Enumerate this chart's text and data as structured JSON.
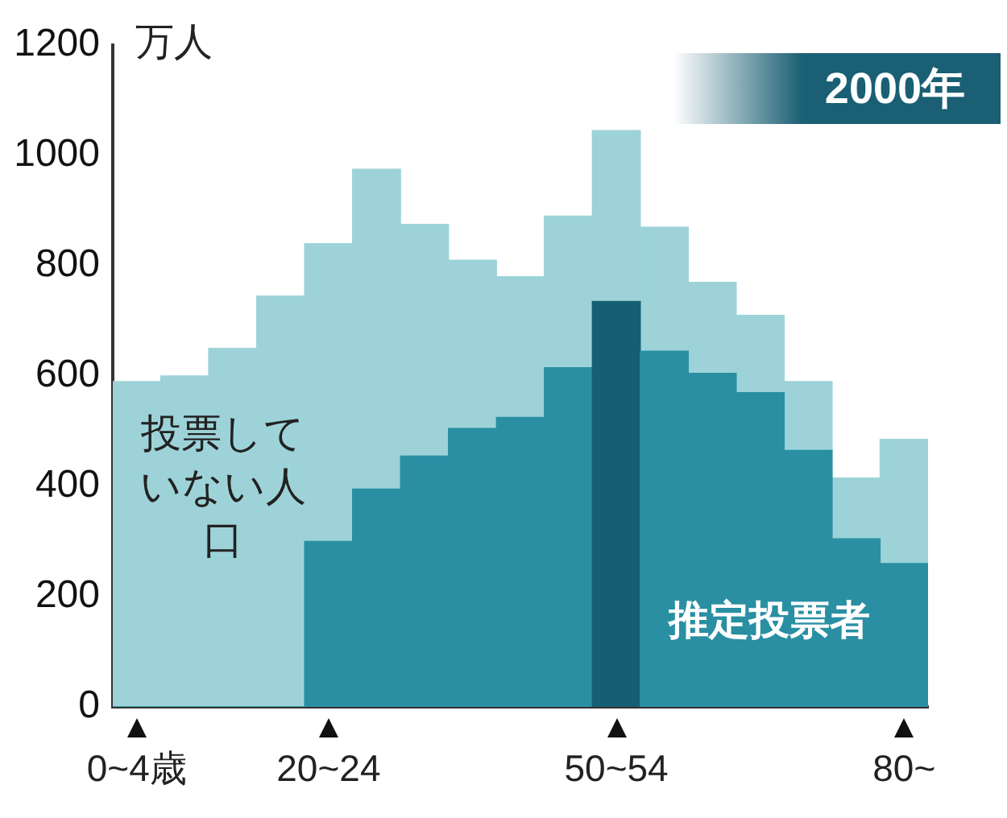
{
  "chart_data": {
    "type": "bar",
    "title": "2000年",
    "ylabel": "万人",
    "stacked": true,
    "categories": [
      "0~4歳",
      null,
      null,
      null,
      "20~24",
      null,
      null,
      null,
      null,
      null,
      "50~54",
      null,
      null,
      null,
      null,
      null,
      "80~"
    ],
    "series": [
      {
        "name": "推定投票者",
        "color": "#2a8fa3",
        "colors": [
          null,
          null,
          null,
          null,
          null,
          null,
          null,
          null,
          null,
          null,
          "#155f73",
          null,
          null,
          null,
          null,
          null,
          null
        ],
        "values": [
          0,
          0,
          0,
          0,
          300,
          395,
          455,
          505,
          525,
          615,
          735,
          645,
          605,
          570,
          465,
          305,
          260
        ]
      },
      {
        "name": "投票していない人口",
        "color": "#9dd3d8",
        "values": [
          590,
          600,
          650,
          745,
          540,
          580,
          420,
          305,
          255,
          275,
          310,
          225,
          165,
          140,
          125,
          110,
          225
        ]
      }
    ],
    "ylim": [
      0,
      1200
    ],
    "yticks": [
      0,
      200,
      400,
      600,
      800,
      1000,
      1200
    ],
    "grid": false,
    "legend": false
  }
}
